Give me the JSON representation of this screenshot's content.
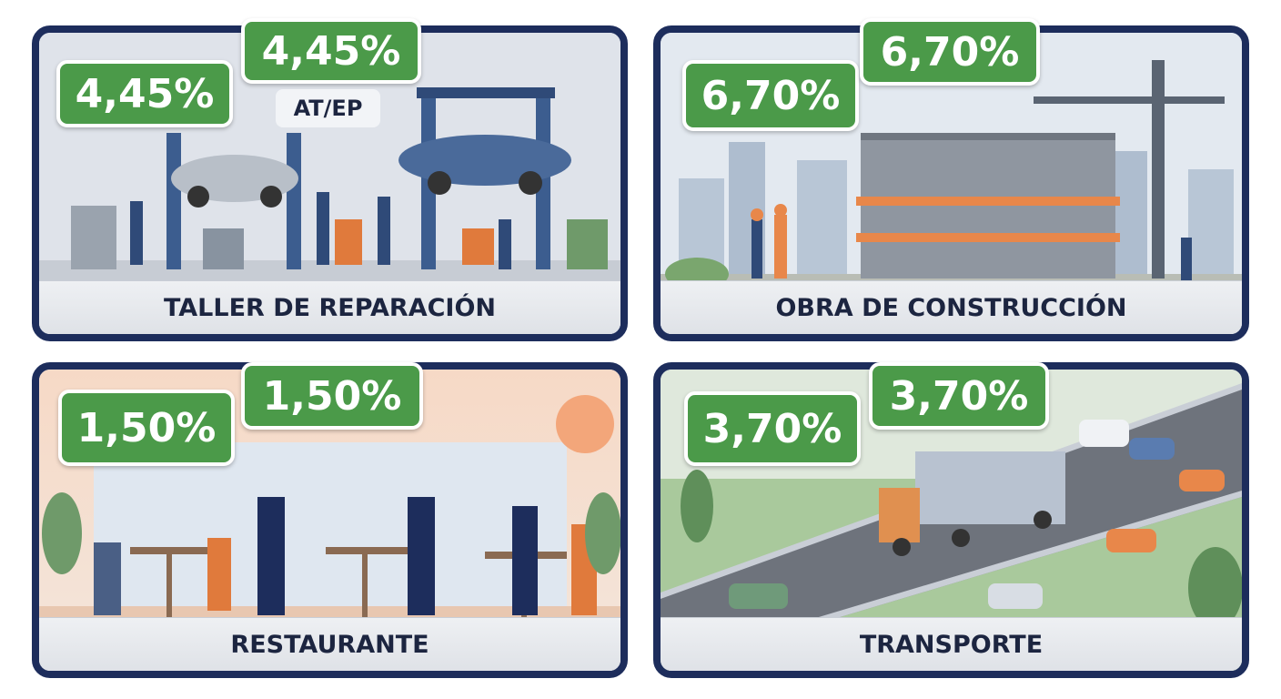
{
  "panels": [
    {
      "title": "TALLER DE REPARACIÓN",
      "badges": [
        "4,45%",
        "4,45%"
      ],
      "tag": "AT/EP"
    },
    {
      "title": "OBRA DE CONSTRUCCIÓN",
      "badges": [
        "6,70%",
        "6,70%"
      ]
    },
    {
      "title": "RESTAURANTE",
      "badges": [
        "1,50%",
        "1,50%"
      ]
    },
    {
      "title": "TRANSPORTE",
      "badges": [
        "3,70%",
        "3,70%"
      ]
    }
  ]
}
